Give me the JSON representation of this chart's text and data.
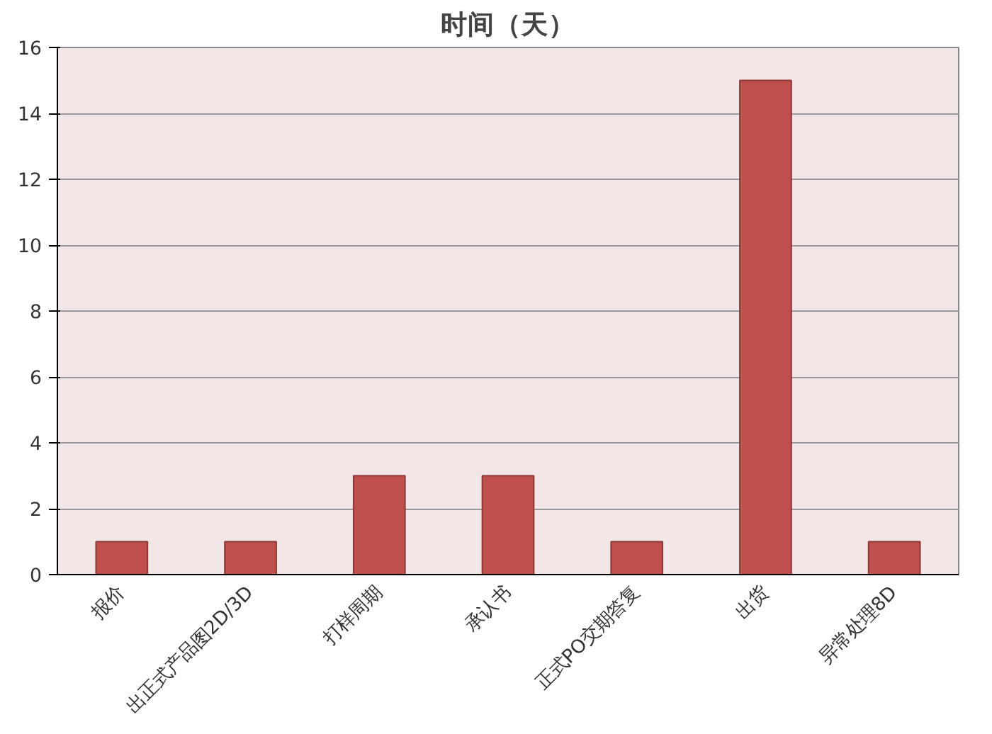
{
  "chart_data": {
    "type": "bar",
    "title": "时间（天）",
    "categories": [
      "报价",
      "出正式产品图2D/3D",
      "打样周期",
      "承认书",
      "正式PO交期答复",
      "出货",
      "异常处理8D"
    ],
    "values": [
      1,
      1,
      3,
      3,
      1,
      15,
      1
    ],
    "color": "#c0504d",
    "ylim": [
      0,
      16
    ],
    "yticks": [
      0,
      2,
      4,
      6,
      8,
      10,
      12,
      14,
      16
    ],
    "grid": "y"
  }
}
